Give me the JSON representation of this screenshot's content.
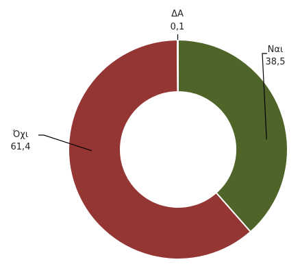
{
  "chart_data": {
    "type": "pie",
    "variant": "donut",
    "slices": [
      {
        "label": "Ναι",
        "value": 38.5,
        "value_text": "38,5",
        "color": "#4e6428"
      },
      {
        "label": "Όχι",
        "value": 61.4,
        "value_text": "61,4",
        "color": "#943634"
      },
      {
        "label": "ΔΑ",
        "value": 0.1,
        "value_text": "0,1",
        "color": "#c0c0c0"
      }
    ],
    "slice_border_color": "#ffffff",
    "leader_line_color": "#000000",
    "start": "top",
    "direction": "clockwise",
    "legend": "none"
  }
}
